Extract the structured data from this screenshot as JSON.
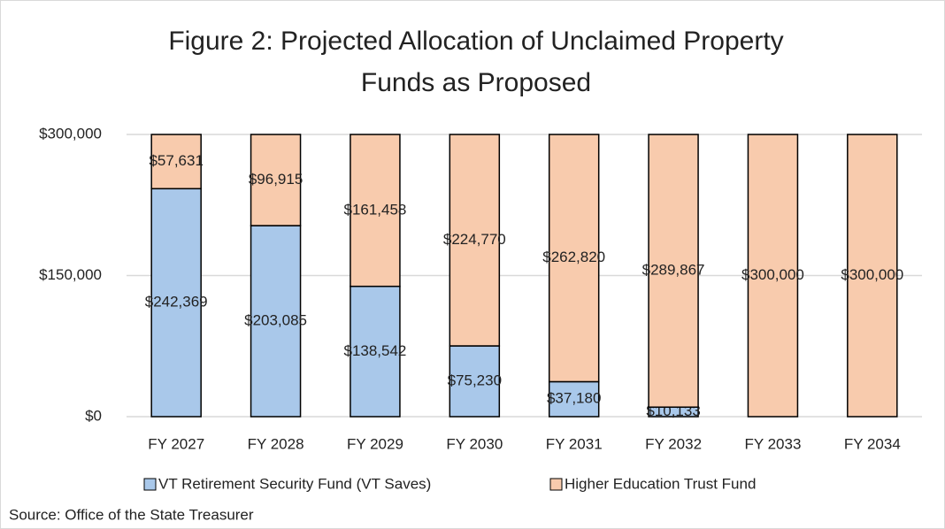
{
  "chart_data": {
    "type": "stacked-bar",
    "title": [
      "Figure 2: Projected Allocation of Unclaimed Property",
      "Funds as Proposed"
    ],
    "source": "Source: Office of the State Treasurer",
    "categories": [
      "FY 2027",
      "FY 2028",
      "FY 2029",
      "FY 2030",
      "FY 2031",
      "FY 2032",
      "FY 2033",
      "FY 2034"
    ],
    "series": [
      {
        "name": "VT Retirement Security Fund (VT Saves)",
        "color": "#a9c8ea",
        "values": [
          242369,
          203085,
          138542,
          75230,
          37180,
          10133,
          0,
          0
        ],
        "value_labels": [
          "$242,369",
          "$203,085",
          "$138,542",
          "$75,230",
          "$37,180",
          "$10,133",
          null,
          null
        ]
      },
      {
        "name": "Higher Education Trust Fund",
        "color": "#f8cbad",
        "values": [
          57631,
          96915,
          161458,
          224770,
          262820,
          289867,
          300000,
          300000
        ],
        "value_labels": [
          "$57,631",
          "$96,915",
          "$161,458",
          "$224,770",
          "$262,820",
          "$289,867",
          "$300,000",
          "$300,000"
        ]
      }
    ],
    "ylim": [
      0,
      300000
    ],
    "yticks": [
      {
        "value": 0,
        "label": "$0"
      },
      {
        "value": 150000,
        "label": "$150,000"
      },
      {
        "value": 300000,
        "label": "$300,000"
      }
    ],
    "grid": true,
    "legend": "bottom"
  }
}
